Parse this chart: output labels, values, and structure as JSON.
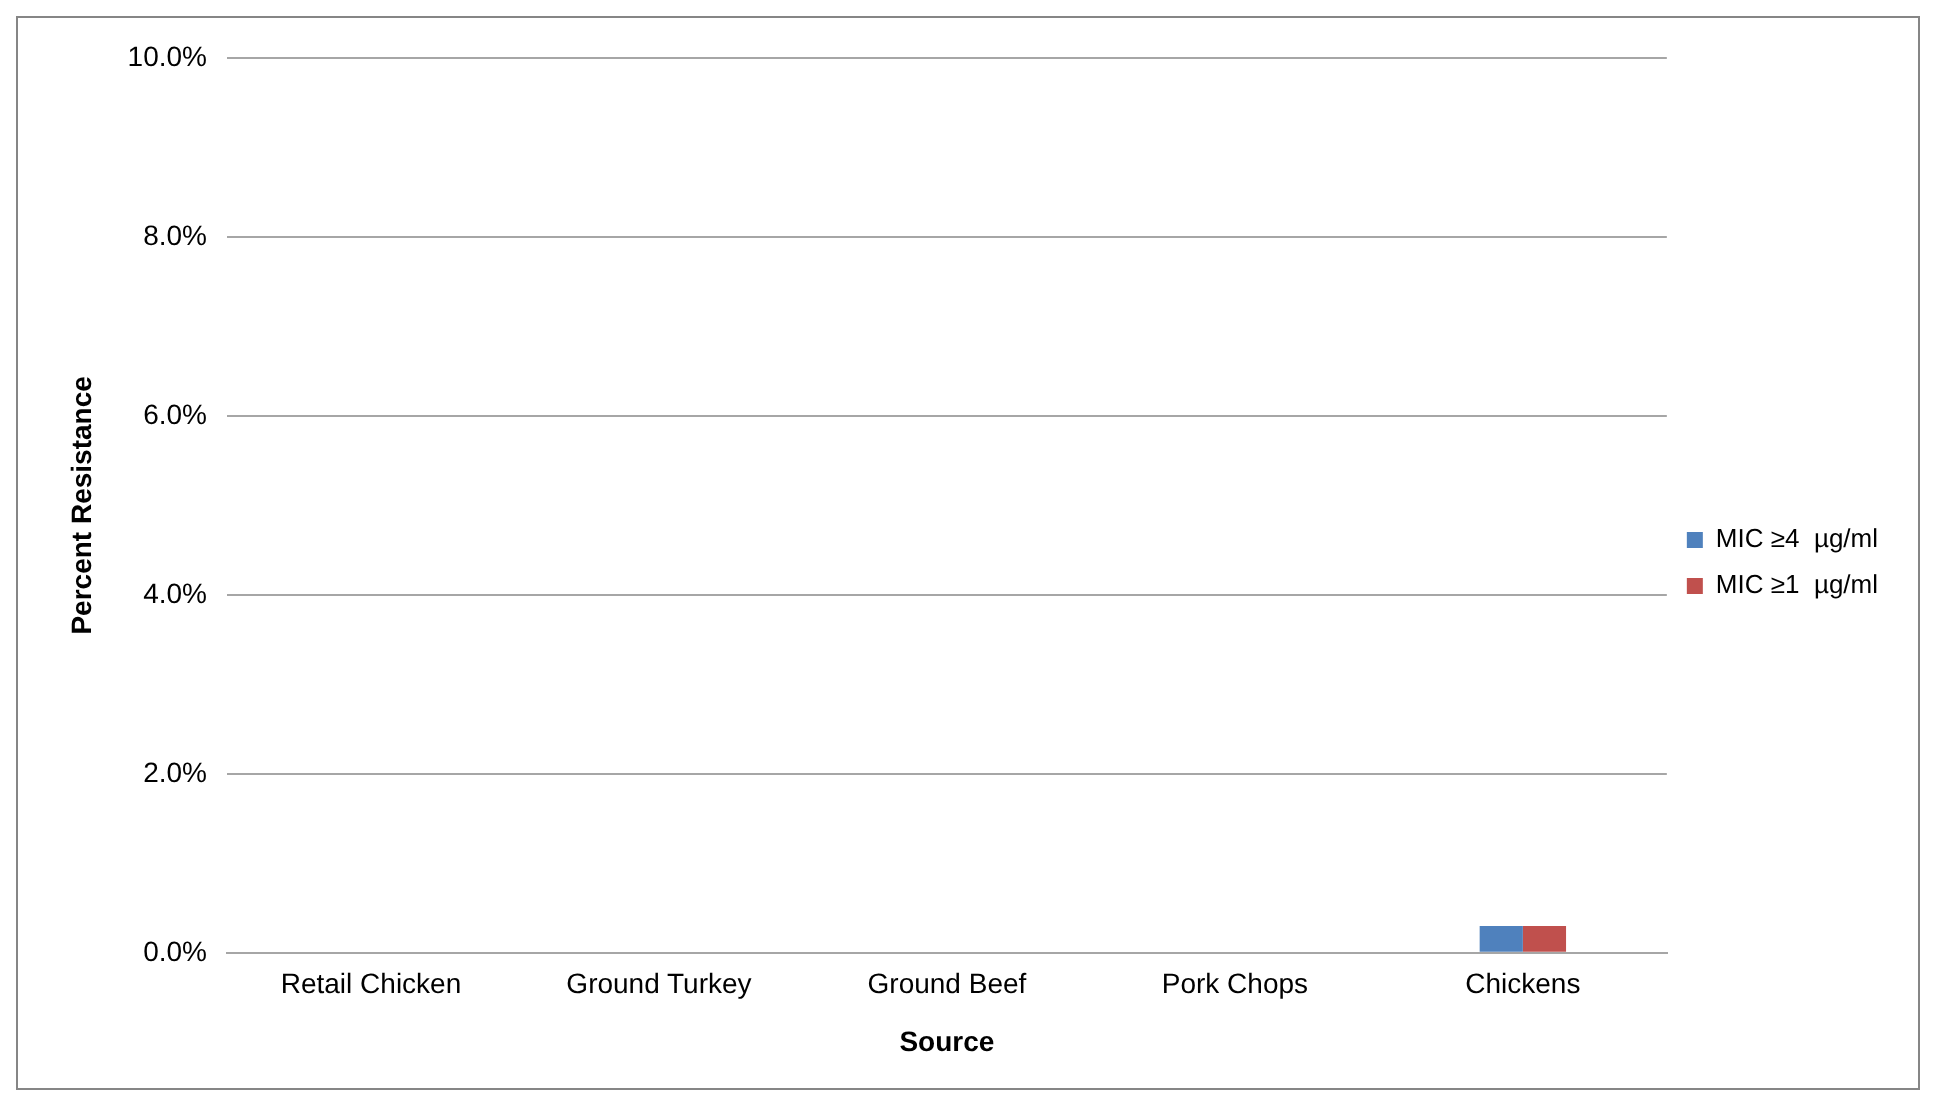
{
  "chart_data": {
    "type": "bar",
    "xlabel": "Source",
    "ylabel": "Percent Resistance",
    "categories": [
      "Retail Chicken",
      "Ground Turkey",
      "Ground Beef",
      "Pork Chops",
      "Chickens"
    ],
    "series": [
      {
        "name": "MIC ≥4  µg/ml",
        "color": "#4f81bd",
        "values": [
          0,
          0,
          0,
          0,
          0.3
        ]
      },
      {
        "name": "MIC ≥1  µg/ml",
        "color": "#c0504d",
        "values": [
          0,
          0,
          0,
          0,
          0.3
        ]
      }
    ],
    "ylim": [
      0,
      10
    ],
    "yticks": [
      {
        "value": 0,
        "label": "0.0%"
      },
      {
        "value": 2,
        "label": "2.0%"
      },
      {
        "value": 4,
        "label": "4.0%"
      },
      {
        "value": 6,
        "label": "6.0%"
      },
      {
        "value": 8,
        "label": "8.0%"
      },
      {
        "value": 10,
        "label": "10.0%"
      }
    ],
    "grid": "y",
    "legend": "right"
  }
}
